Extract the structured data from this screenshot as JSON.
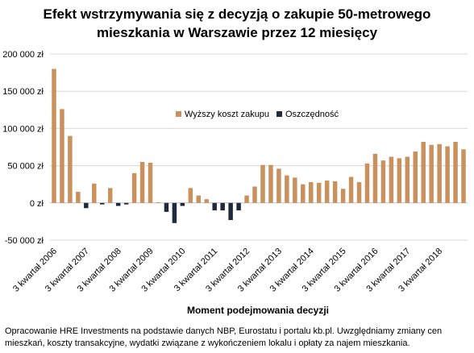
{
  "chart_data": {
    "type": "bar",
    "title_lines": [
      "Efekt wstrzymywania się z decyzją o zakupie 50-metrowego",
      "mieszkania w Warszawie przez 12 miesięcy"
    ],
    "xlabel": "Moment podejmowania  decyzji",
    "ylabel": "",
    "ylim": [
      -50000,
      200000
    ],
    "yticks": [
      {
        "value": 200000,
        "label": "200 000 zł"
      },
      {
        "value": 150000,
        "label": "150 000 zł"
      },
      {
        "value": 100000,
        "label": "100 000 zł"
      },
      {
        "value": 50000,
        "label": "50 000 zł"
      },
      {
        "value": 0,
        "label": "0 zł"
      },
      {
        "value": -50000,
        "label": "-50 000 zł"
      }
    ],
    "category_labels": [
      {
        "index": 0,
        "label": "3 kwartał 2006"
      },
      {
        "index": 4,
        "label": "3 kwartał 2007"
      },
      {
        "index": 8,
        "label": "3 kwartał 2008"
      },
      {
        "index": 12,
        "label": "3 kwartał 2009"
      },
      {
        "index": 16,
        "label": "3 kwartał 2010"
      },
      {
        "index": 20,
        "label": "3 kwartał 2011"
      },
      {
        "index": 24,
        "label": "3 kwartał 2012"
      },
      {
        "index": 28,
        "label": "3 kwartał 2013"
      },
      {
        "index": 32,
        "label": "3 kwartał 2014"
      },
      {
        "index": 36,
        "label": "3 kwartał 2015"
      },
      {
        "index": 40,
        "label": "3 kwartał 2016"
      },
      {
        "index": 44,
        "label": "3 kwartał 2017"
      },
      {
        "index": 48,
        "label": "3 kwartał 2018"
      }
    ],
    "series": [
      {
        "name": "Wyższy koszt zakupu",
        "color": "#c8915e",
        "legend_label": "Wyższy koszt zakupu"
      },
      {
        "name": "Oszczędność",
        "color": "#1f2a3c",
        "legend_label": "Oszczędność"
      }
    ],
    "values": [
      180000,
      126000,
      90000,
      15000,
      -7000,
      26000,
      -2000,
      20000,
      -4000,
      -2000,
      40000,
      55000,
      54000,
      1000,
      -12000,
      -27000,
      -4000,
      20000,
      10000,
      5000,
      -10000,
      -10000,
      -23000,
      -10000,
      10000,
      22000,
      51000,
      51000,
      46000,
      37000,
      34000,
      25000,
      28000,
      27000,
      30000,
      29000,
      19000,
      35000,
      28000,
      53000,
      66000,
      57000,
      62000,
      60000,
      62000,
      69000,
      82000,
      78000,
      79000,
      76000,
      82000,
      72000
    ],
    "legend_position": "center",
    "grid": true
  },
  "footnote": "Opracowanie HRE Investments na podstawie danych NBP, Eurostatu i portalu kb.pl. Uwzględniamy zmiany cen mieszkań, koszty transakcyjne, wydatki związane z wykończeniem lokalu i opłaty za najem mieszkania."
}
